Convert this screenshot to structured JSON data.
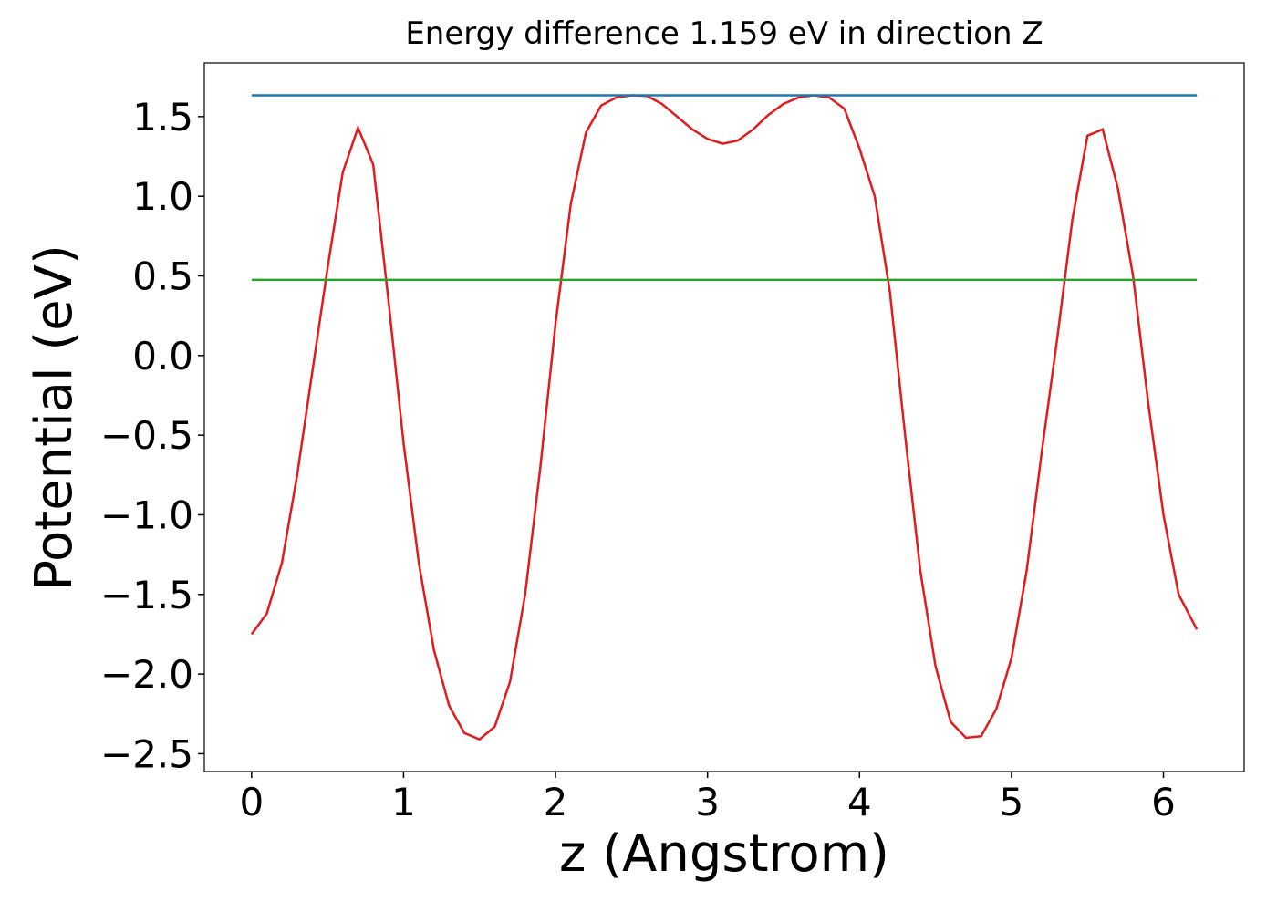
{
  "chart_data": {
    "type": "line",
    "title": "Energy difference 1.159 eV in direction Z",
    "xlabel": "z (Angstrom)",
    "ylabel": "Potential (eV)",
    "xlim": [
      -0.311,
      6.531
    ],
    "ylim": [
      -2.612,
      1.837
    ],
    "xticks": [
      0,
      1,
      2,
      3,
      4,
      5,
      6
    ],
    "yticks": [
      {
        "value": -2.5,
        "label": "−2.5"
      },
      {
        "value": -2.0,
        "label": "−2.0"
      },
      {
        "value": -1.5,
        "label": "−1.5"
      },
      {
        "value": -1.0,
        "label": "−1.0"
      },
      {
        "value": -0.5,
        "label": "−0.5"
      },
      {
        "value": 0,
        "label": "0.0"
      },
      0.5,
      {
        "value": 1.0,
        "label": "1.0"
      },
      1.5
    ],
    "series": [
      {
        "color": "#e41a1c",
        "x": [
          0,
          0.1,
          0.2,
          0.3,
          0.4,
          0.5,
          0.6,
          0.7,
          0.8,
          0.9,
          1.0,
          1.1,
          1.2,
          1.3,
          1.4,
          1.5,
          1.6,
          1.7,
          1.8,
          1.9,
          2.0,
          2.1,
          2.2,
          2.3,
          2.4,
          2.5,
          2.6,
          2.7,
          2.8,
          2.9,
          3.0,
          3.1,
          3.2,
          3.3,
          3.4,
          3.5,
          3.6,
          3.7,
          3.8,
          3.9,
          4.0,
          4.1,
          4.2,
          4.3,
          4.4,
          4.5,
          4.6,
          4.7,
          4.8,
          4.9,
          5.0,
          5.1,
          5.2,
          5.3,
          5.4,
          5.5,
          5.6,
          5.7,
          5.8,
          5.9,
          6.0,
          6.1,
          6.22
        ],
        "values": [
          -1.75,
          -1.62,
          -1.3,
          -0.75,
          -0.1,
          0.55,
          1.15,
          1.43,
          1.2,
          0.35,
          -0.55,
          -1.3,
          -1.85,
          -2.2,
          -2.37,
          -2.41,
          -2.33,
          -2.05,
          -1.5,
          -0.7,
          0.2,
          0.95,
          1.4,
          1.57,
          1.62,
          1.634,
          1.63,
          1.58,
          1.5,
          1.42,
          1.36,
          1.33,
          1.35,
          1.42,
          1.51,
          1.58,
          1.62,
          1.634,
          1.62,
          1.55,
          1.3,
          1.0,
          0.4,
          -0.5,
          -1.35,
          -1.95,
          -2.3,
          -2.4,
          -2.39,
          -2.22,
          -1.9,
          -1.35,
          -0.6,
          0.1,
          0.85,
          1.38,
          1.42,
          1.05,
          0.5,
          -0.3,
          -1.0,
          -1.5,
          -1.72
        ]
      },
      {
        "color": "#1f77b4",
        "x": [
          0,
          6.22
        ],
        "values": [
          1.634,
          1.634
        ]
      },
      {
        "color": "#2ca02c",
        "x": [
          0,
          6.22
        ],
        "values": [
          0.475,
          0.475
        ]
      }
    ]
  }
}
